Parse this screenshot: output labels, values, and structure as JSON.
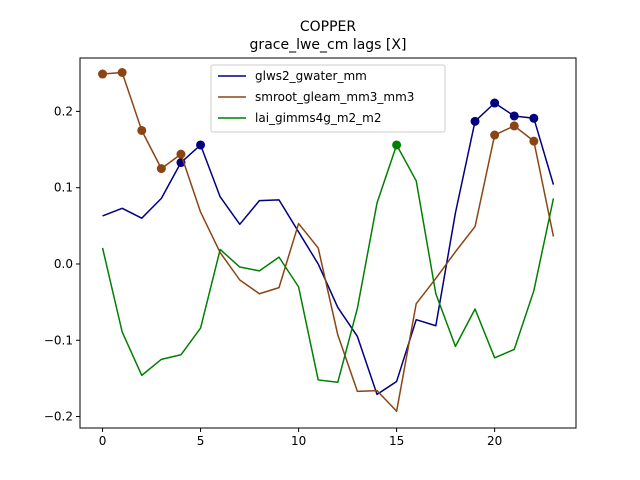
{
  "chart_data": {
    "type": "line",
    "title": "COPPER",
    "subtitle": "grace_lwe_cm lags [X]",
    "xlabel": "",
    "ylabel": "",
    "xlim": [
      -1.15,
      24.15
    ],
    "ylim": [
      -0.215,
      0.27
    ],
    "xticks": [
      0,
      5,
      10,
      15,
      20
    ],
    "yticks": [
      -0.2,
      -0.1,
      0.0,
      0.1,
      0.2
    ],
    "xtick_labels": [
      "0",
      "5",
      "10",
      "15",
      "20"
    ],
    "ytick_labels": [
      "−0.2",
      "−0.1",
      "0.0",
      "0.1",
      "0.2"
    ],
    "grid": false,
    "legend_position": "top-center",
    "x": [
      0,
      1,
      2,
      3,
      4,
      5,
      6,
      7,
      8,
      9,
      10,
      11,
      12,
      13,
      14,
      15,
      16,
      17,
      18,
      19,
      20,
      21,
      22,
      23
    ],
    "series": [
      {
        "name": "glws2_gwater_mm",
        "color": "#000080",
        "values": [
          0.063,
          0.073,
          0.06,
          0.086,
          0.133,
          0.156,
          0.088,
          0.052,
          0.083,
          0.084,
          0.042,
          0.0,
          -0.057,
          -0.095,
          -0.171,
          -0.154,
          -0.073,
          -0.081,
          0.067,
          0.187,
          0.211,
          0.194,
          0.191,
          0.104
        ],
        "markers": [
          4,
          5,
          19,
          20,
          21,
          22
        ]
      },
      {
        "name": "smroot_gleam_mm3_mm3",
        "color": "#8B4513",
        "values": [
          0.249,
          0.251,
          0.175,
          0.125,
          0.144,
          0.068,
          0.015,
          -0.021,
          -0.039,
          -0.031,
          0.053,
          0.021,
          -0.093,
          -0.167,
          -0.166,
          -0.193,
          -0.052,
          -0.019,
          0.016,
          0.049,
          0.169,
          0.181,
          0.161,
          0.036
        ],
        "markers": [
          0,
          1,
          2,
          3,
          4,
          20,
          21,
          22
        ]
      },
      {
        "name": "lai_gimms4g_m2_m2",
        "color": "#008000",
        "values": [
          0.021,
          -0.089,
          -0.146,
          -0.125,
          -0.119,
          -0.084,
          0.019,
          -0.004,
          -0.009,
          0.009,
          -0.03,
          -0.152,
          -0.155,
          -0.058,
          0.08,
          0.156,
          0.109,
          -0.039,
          -0.108,
          -0.059,
          -0.123,
          -0.112,
          -0.035,
          0.086
        ],
        "markers": [
          15
        ]
      }
    ]
  }
}
